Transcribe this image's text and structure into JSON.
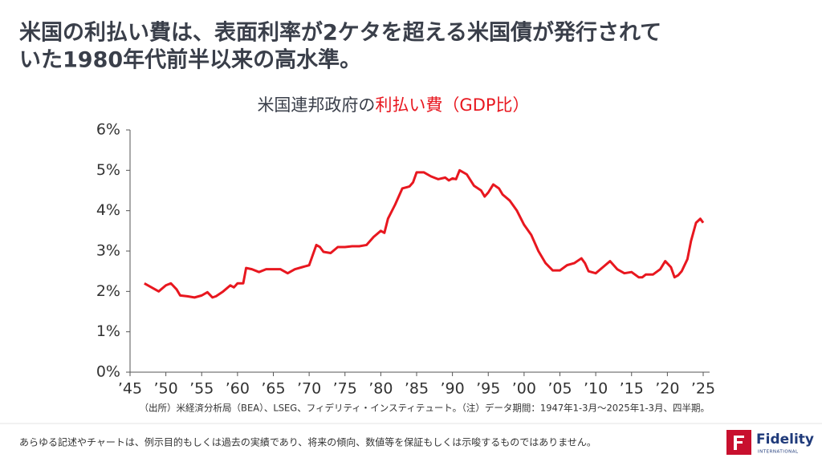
{
  "headline": [
    "米国の利払い費は、表面利率が2ケタを超える米国債が発行されて",
    "いた1980年代前半以来の高水準。"
  ],
  "source": "（出所）米経済分析局（BEA）、LSEG、フィデリティ・インスティテュート。（注）データ期間：1947年1-3月～2025年1-3月、四半期。",
  "disclaimer": "あらゆる記述やチャートは、例示目的もしくは過去の実績であり、将来の傾向、数値等を保証もしくは示唆するものではありません。",
  "logo": {
    "name": "Fidelity",
    "sub": "INTERNATIONAL"
  },
  "chart_data": {
    "type": "line",
    "title": [
      {
        "text": "米国連邦政府の",
        "color": "#3a3f4a"
      },
      {
        "text": "利払い費（GDP比）",
        "color": "#e8171f"
      }
    ],
    "color": "#e8171f",
    "x": [
      1947,
      1948,
      1949,
      1950,
      1950.7,
      1951.5,
      1952,
      1953,
      1954,
      1955,
      1955.8,
      1956.5,
      1957,
      1958,
      1959,
      1959.5,
      1960,
      1960.8,
      1961.2,
      1962,
      1963,
      1964,
      1965,
      1966,
      1967,
      1968,
      1969,
      1970,
      1970.5,
      1971,
      1971.5,
      1972,
      1973,
      1974,
      1975,
      1976,
      1977,
      1978,
      1979,
      1980,
      1980.5,
      1981,
      1982,
      1983,
      1984,
      1984.5,
      1985,
      1986,
      1987,
      1988,
      1989,
      1989.5,
      1990,
      1990.5,
      1991,
      1992,
      1993,
      1994,
      1994.5,
      1995,
      1995.7,
      1996.5,
      1997,
      1998,
      1999,
      2000,
      2001,
      2002,
      2003,
      2004,
      2005,
      2006,
      2007,
      2008,
      2008.5,
      2009,
      2010,
      2011,
      2012,
      2013,
      2014,
      2015,
      2016,
      2016.5,
      2017,
      2018,
      2019,
      2019.7,
      2020.5,
      2021,
      2021.5,
      2022,
      2022.8,
      2023.3,
      2024,
      2024.6,
      2025
    ],
    "values": [
      2.2,
      2.1,
      2.0,
      2.15,
      2.2,
      2.05,
      1.9,
      1.88,
      1.85,
      1.9,
      1.98,
      1.85,
      1.88,
      2.0,
      2.15,
      2.1,
      2.2,
      2.2,
      2.58,
      2.55,
      2.48,
      2.55,
      2.55,
      2.55,
      2.45,
      2.55,
      2.6,
      2.65,
      2.9,
      3.15,
      3.1,
      2.98,
      2.95,
      3.1,
      3.1,
      3.12,
      3.12,
      3.15,
      3.35,
      3.5,
      3.45,
      3.8,
      4.15,
      4.55,
      4.6,
      4.7,
      4.95,
      4.95,
      4.85,
      4.78,
      4.82,
      4.75,
      4.8,
      4.78,
      5.0,
      4.9,
      4.62,
      4.5,
      4.35,
      4.45,
      4.65,
      4.55,
      4.4,
      4.25,
      4.0,
      3.65,
      3.4,
      3.0,
      2.7,
      2.52,
      2.52,
      2.65,
      2.7,
      2.82,
      2.7,
      2.5,
      2.45,
      2.6,
      2.75,
      2.55,
      2.45,
      2.48,
      2.35,
      2.35,
      2.42,
      2.42,
      2.55,
      2.75,
      2.6,
      2.35,
      2.4,
      2.5,
      2.8,
      3.25,
      3.7,
      3.8,
      3.7
    ],
    "xlim": [
      1945,
      2026
    ],
    "ylim": [
      0,
      6
    ],
    "xticks": [
      {
        "value": 1945,
        "label": "’45"
      },
      {
        "value": 1950,
        "label": "’50"
      },
      {
        "value": 1955,
        "label": "’55"
      },
      {
        "value": 1960,
        "label": "’60"
      },
      {
        "value": 1965,
        "label": "’65"
      },
      {
        "value": 1970,
        "label": "’70"
      },
      {
        "value": 1975,
        "label": "’75"
      },
      {
        "value": 1980,
        "label": "’80"
      },
      {
        "value": 1985,
        "label": "’85"
      },
      {
        "value": 1990,
        "label": "’90"
      },
      {
        "value": 1995,
        "label": "’95"
      },
      {
        "value": 2000,
        "label": "’00"
      },
      {
        "value": 2005,
        "label": "’05"
      },
      {
        "value": 2010,
        "label": "’10"
      },
      {
        "value": 2015,
        "label": "’15"
      },
      {
        "value": 2020,
        "label": "’20"
      },
      {
        "value": 2025,
        "label": "’25"
      }
    ],
    "yticks": [
      {
        "value": 0,
        "label": "0%"
      },
      {
        "value": 1,
        "label": "1%"
      },
      {
        "value": 2,
        "label": "2%"
      },
      {
        "value": 3,
        "label": "3%"
      },
      {
        "value": 4,
        "label": "4%"
      },
      {
        "value": 5,
        "label": "5%"
      },
      {
        "value": 6,
        "label": "6%"
      }
    ]
  }
}
